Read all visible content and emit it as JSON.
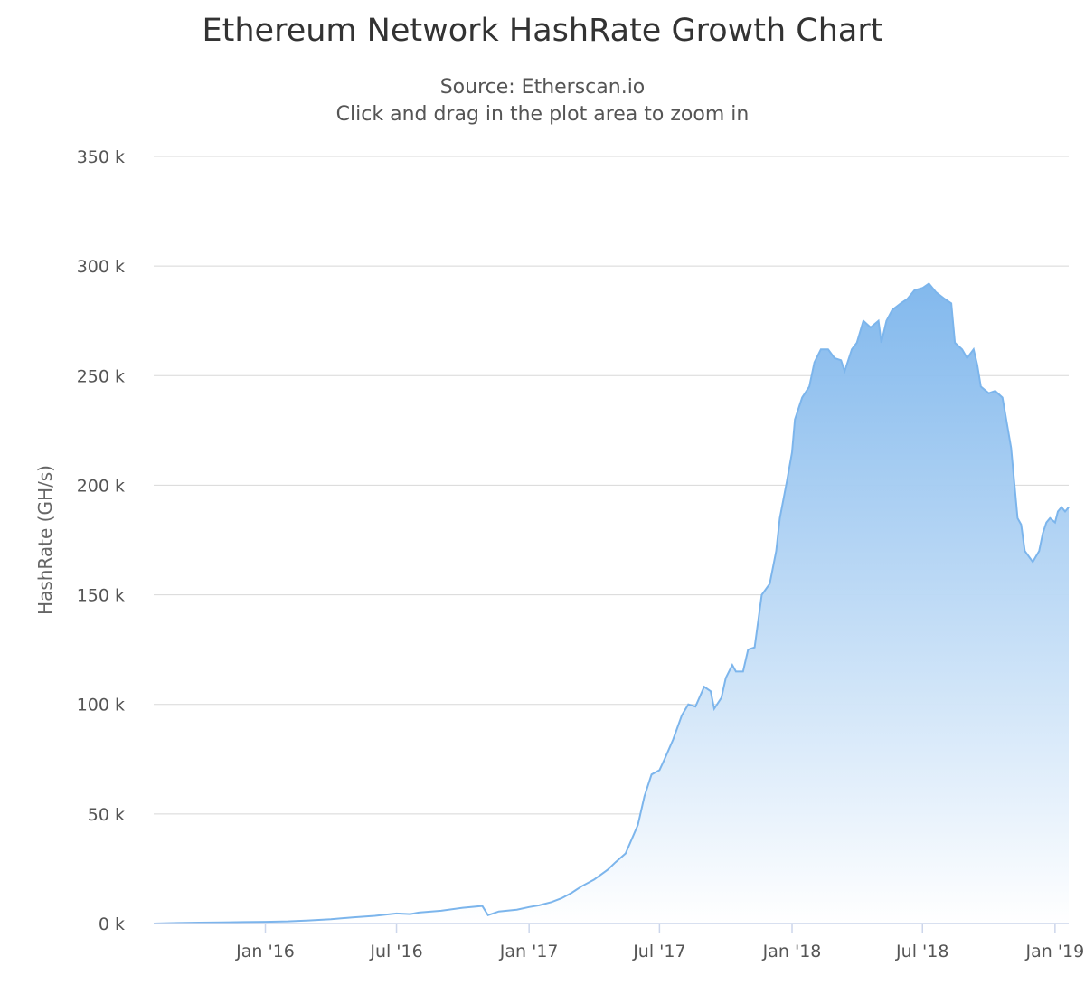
{
  "chart_data": {
    "type": "area",
    "title": "Ethereum Network HashRate Growth Chart",
    "subtitle_lines": [
      "Source: Etherscan.io",
      "Click and drag in the plot area to zoom in"
    ],
    "ylabel": "HashRate (GH/s)",
    "xlabel": "",
    "ylim": [
      0,
      350000
    ],
    "xlim": [
      "2015-07-30",
      "2019-01-20"
    ],
    "grid": true,
    "legend": "none",
    "y_ticks": [
      {
        "value": 0,
        "label": "0 k"
      },
      {
        "value": 50000,
        "label": "50 k"
      },
      {
        "value": 100000,
        "label": "100 k"
      },
      {
        "value": 150000,
        "label": "150 k"
      },
      {
        "value": 200000,
        "label": "200 k"
      },
      {
        "value": 250000,
        "label": "250 k"
      },
      {
        "value": 300000,
        "label": "300 k"
      },
      {
        "value": 350000,
        "label": "350 k"
      }
    ],
    "x_ticks": [
      {
        "date": "2016-01-01",
        "label": "Jan '16"
      },
      {
        "date": "2016-07-01",
        "label": "Jul '16"
      },
      {
        "date": "2017-01-01",
        "label": "Jan '17"
      },
      {
        "date": "2017-07-01",
        "label": "Jul '17"
      },
      {
        "date": "2018-01-01",
        "label": "Jan '18"
      },
      {
        "date": "2018-07-01",
        "label": "Jul '18"
      },
      {
        "date": "2019-01-01",
        "label": "Jan '19"
      }
    ],
    "colors": {
      "line": "#7cb5ec",
      "area_top": "#7cb5ec",
      "area_bottom": "#ffffff",
      "grid": "#d8d8d8",
      "axis": "#ccd6eb"
    },
    "series": [
      {
        "x": [
          "2015-07-30",
          "2015-09-01",
          "2015-10-01",
          "2015-11-01",
          "2015-12-01",
          "2016-01-01",
          "2016-02-01",
          "2016-03-01",
          "2016-04-01",
          "2016-05-01",
          "2016-06-01",
          "2016-07-01",
          "2016-07-20",
          "2016-08-01",
          "2016-09-01",
          "2016-10-01",
          "2016-10-28",
          "2016-11-05",
          "2016-11-20",
          "2016-12-15",
          "2017-01-01",
          "2017-01-15",
          "2017-02-01",
          "2017-02-15",
          "2017-03-01",
          "2017-03-15",
          "2017-04-01",
          "2017-04-20",
          "2017-05-01",
          "2017-05-15",
          "2017-06-01",
          "2017-06-10",
          "2017-06-20",
          "2017-07-01",
          "2017-07-08",
          "2017-07-20",
          "2017-08-01",
          "2017-08-10",
          "2017-08-20",
          "2017-09-01",
          "2017-09-10",
          "2017-09-15",
          "2017-09-25",
          "2017-10-01",
          "2017-10-10",
          "2017-10-15",
          "2017-10-25",
          "2017-11-01",
          "2017-11-10",
          "2017-11-20",
          "2017-12-01",
          "2017-12-10",
          "2017-12-15",
          "2017-12-25",
          "2018-01-01",
          "2018-01-05",
          "2018-01-15",
          "2018-01-25",
          "2018-02-01",
          "2018-02-10",
          "2018-02-20",
          "2018-03-01",
          "2018-03-10",
          "2018-03-15",
          "2018-03-25",
          "2018-04-01",
          "2018-04-10",
          "2018-04-20",
          "2018-05-01",
          "2018-05-05",
          "2018-05-12",
          "2018-05-20",
          "2018-06-01",
          "2018-06-10",
          "2018-06-20",
          "2018-07-01",
          "2018-07-10",
          "2018-07-20",
          "2018-08-01",
          "2018-08-10",
          "2018-08-15",
          "2018-08-25",
          "2018-09-01",
          "2018-09-10",
          "2018-09-15",
          "2018-09-20",
          "2018-10-01",
          "2018-10-10",
          "2018-10-20",
          "2018-11-01",
          "2018-11-10",
          "2018-11-15",
          "2018-11-20",
          "2018-12-01",
          "2018-12-10",
          "2018-12-15",
          "2018-12-20",
          "2018-12-25",
          "2019-01-01",
          "2019-01-05",
          "2019-01-10",
          "2019-01-15",
          "2019-01-20"
        ],
        "values": [
          0,
          250,
          400,
          500,
          650,
          800,
          1000,
          1400,
          2000,
          2800,
          3500,
          4600,
          4300,
          5000,
          5800,
          7200,
          8000,
          3800,
          5500,
          6300,
          7500,
          8300,
          9800,
          11500,
          14000,
          17000,
          20000,
          24500,
          28000,
          32000,
          45000,
          58000,
          68000,
          70000,
          75000,
          84000,
          95000,
          100000,
          99000,
          108000,
          106000,
          98000,
          103000,
          112000,
          118000,
          115000,
          115000,
          125000,
          126000,
          150000,
          155000,
          170000,
          185000,
          202000,
          215000,
          230000,
          240000,
          245000,
          256000,
          262000,
          262000,
          258000,
          257000,
          252000,
          262000,
          265000,
          275000,
          272000,
          275000,
          265000,
          275000,
          280000,
          283000,
          285000,
          289000,
          290000,
          292000,
          288000,
          285000,
          283000,
          265000,
          262000,
          258000,
          262000,
          255000,
          245000,
          242000,
          243000,
          240000,
          217000,
          185000,
          182000,
          170000,
          165000,
          170000,
          178000,
          183000,
          185000,
          183000,
          188000,
          190000,
          188000,
          190000
        ]
      }
    ]
  }
}
